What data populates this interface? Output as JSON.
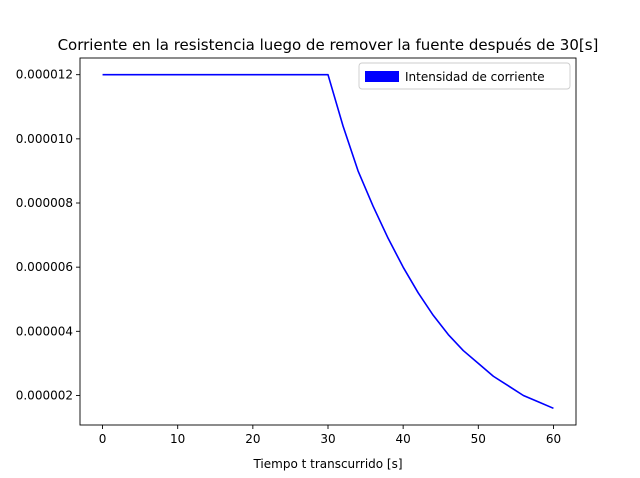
{
  "chart_data": {
    "type": "line",
    "title": "Corriente en la resistencia luego de remover la fuente después de 30[s]",
    "xlabel": "Tiempo t transcurrido [s]",
    "ylabel": "",
    "xlim": [
      -3,
      63
    ],
    "ylim": [
      1.08e-06,
      1.252e-05
    ],
    "x_ticks": [
      0,
      10,
      20,
      30,
      40,
      50,
      60
    ],
    "x_tick_labels": [
      "0",
      "10",
      "20",
      "30",
      "40",
      "50",
      "60"
    ],
    "y_ticks": [
      2e-06,
      4e-06,
      6e-06,
      8e-06,
      1e-05,
      1.2e-05
    ],
    "y_tick_labels": [
      "0.000002",
      "0.000004",
      "0.000006",
      "0.000008",
      "0.000010",
      "0.000012"
    ],
    "grid": false,
    "legend": {
      "position": "top-right",
      "entries": [
        "Intensidad de corriente"
      ]
    },
    "series": [
      {
        "name": "Intensidad de corriente",
        "color": "#0000ff",
        "x": [
          0,
          5,
          10,
          15,
          20,
          25,
          30,
          32,
          34,
          36,
          38,
          40,
          42,
          44,
          46,
          48,
          50,
          52,
          54,
          56,
          58,
          60
        ],
        "y": [
          1.2e-05,
          1.2e-05,
          1.2e-05,
          1.2e-05,
          1.2e-05,
          1.2e-05,
          1.2e-05,
          1.04e-05,
          9e-06,
          7.9e-06,
          6.9e-06,
          6e-06,
          5.2e-06,
          4.5e-06,
          3.9e-06,
          3.4e-06,
          3e-06,
          2.6e-06,
          2.3e-06,
          2e-06,
          1.8e-06,
          1.6e-06
        ]
      }
    ]
  }
}
